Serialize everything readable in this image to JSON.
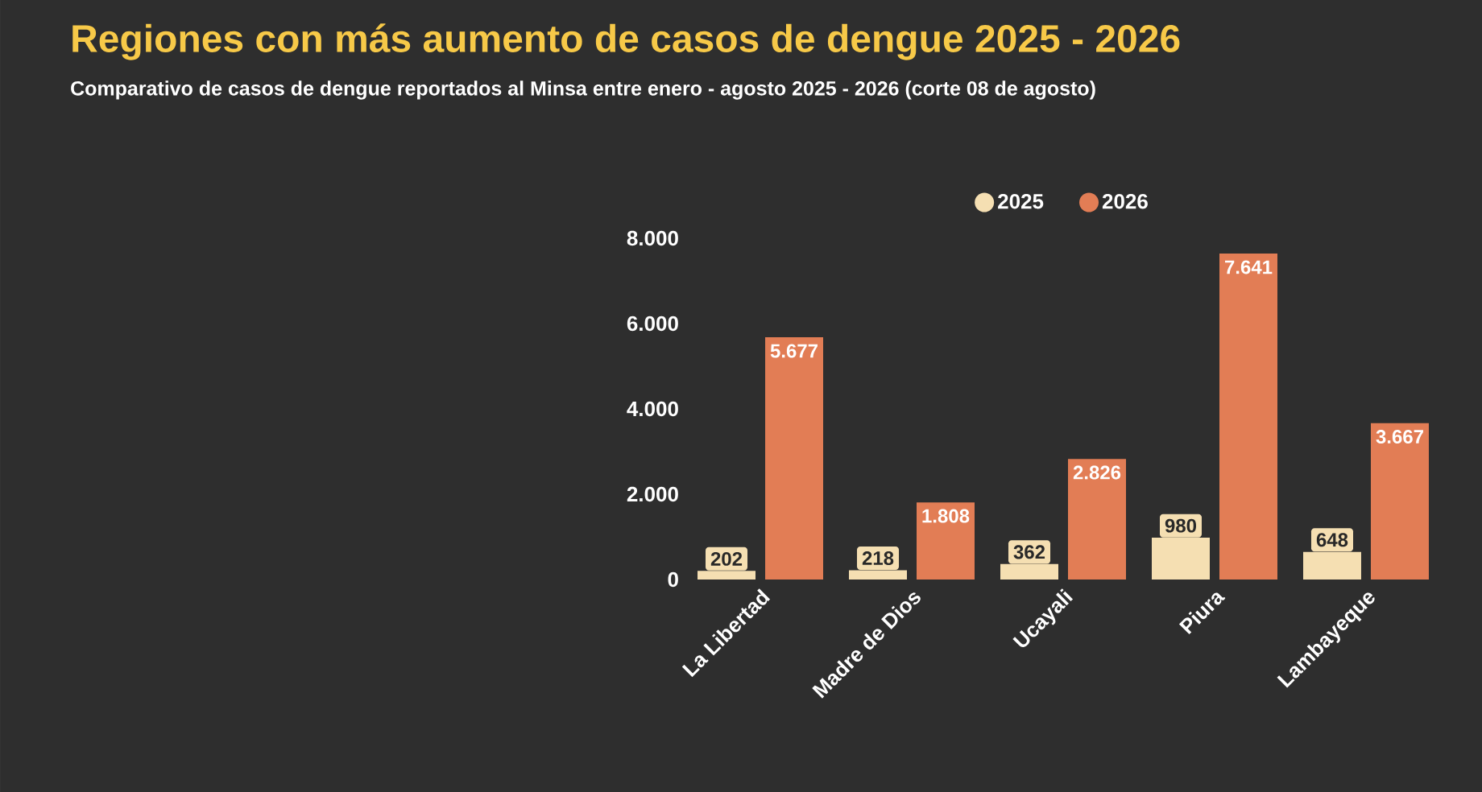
{
  "chart_data": {
    "type": "bar",
    "title": "Regiones con más aumento de casos de dengue 2025 - 2026",
    "subtitle": "Comparativo de casos de dengue reportados al Minsa entre enero - agosto 2025 - 2026 (corte 08 de agosto)",
    "categories": [
      "La Libertad",
      "Madre de Dios",
      "Ucayali",
      "Piura",
      "Lambayeque"
    ],
    "series": [
      {
        "name": "2025",
        "color": "#f5dfb2",
        "values": [
          202,
          218,
          362,
          980,
          648
        ],
        "value_labels": [
          "202",
          "218",
          "362",
          "980",
          "648"
        ]
      },
      {
        "name": "2026",
        "color": "#e27d55",
        "values": [
          5677,
          1808,
          2826,
          7641,
          3667
        ],
        "value_labels": [
          "5.677",
          "1.808",
          "2.826",
          "7.641",
          "3.667"
        ]
      }
    ],
    "ylim": [
      0,
      8000
    ],
    "yticks": [
      0,
      {
        "value": 2000,
        "label": "2.000"
      },
      {
        "value": 4000,
        "label": "4.000"
      },
      {
        "value": 6000,
        "label": "6.000"
      },
      {
        "value": 8000,
        "label": "8.000"
      }
    ],
    "legend": "top"
  }
}
